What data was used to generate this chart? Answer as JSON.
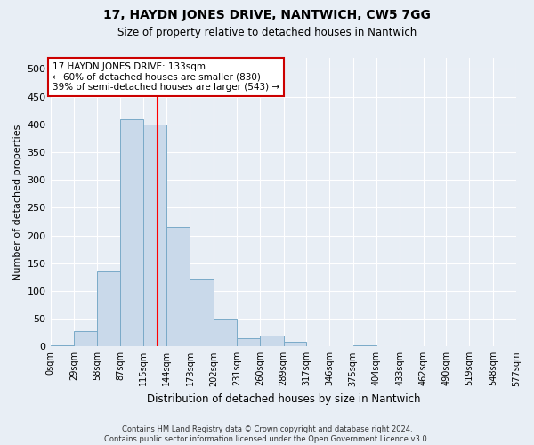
{
  "title": "17, HAYDN JONES DRIVE, NANTWICH, CW5 7GG",
  "subtitle": "Size of property relative to detached houses in Nantwich",
  "xlabel": "Distribution of detached houses by size in Nantwich",
  "ylabel": "Number of detached properties",
  "footer1": "Contains HM Land Registry data © Crown copyright and database right 2024.",
  "footer2": "Contains public sector information licensed under the Open Government Licence v3.0.",
  "annotation_line1": "17 HAYDN JONES DRIVE: 133sqm",
  "annotation_line2": "← 60% of detached houses are smaller (830)",
  "annotation_line3": "39% of semi-detached houses are larger (543) →",
  "bar_color": "#c9d9ea",
  "bar_edge_color": "#7aaac8",
  "reference_line_x": 133,
  "reference_line_color": "red",
  "bin_edges": [
    0,
    29,
    58,
    87,
    115,
    144,
    173,
    202,
    231,
    260,
    289,
    317,
    346,
    375,
    404,
    433,
    462,
    490,
    519,
    548,
    577
  ],
  "bar_heights": [
    2,
    27,
    135,
    410,
    400,
    215,
    120,
    50,
    15,
    20,
    8,
    0,
    0,
    2,
    0,
    0,
    1,
    0,
    0,
    1
  ],
  "ylim": [
    0,
    520
  ],
  "yticks": [
    0,
    50,
    100,
    150,
    200,
    250,
    300,
    350,
    400,
    450,
    500
  ],
  "background_color": "#e8eef5",
  "plot_bg_color": "#e8eef5",
  "grid_color": "#ffffff",
  "annotation_box_facecolor": "#ffffff",
  "annotation_box_edgecolor": "#cc0000",
  "title_fontsize": 10,
  "subtitle_fontsize": 8.5,
  "ylabel_fontsize": 8,
  "xlabel_fontsize": 8.5,
  "ytick_fontsize": 8,
  "xtick_fontsize": 7
}
